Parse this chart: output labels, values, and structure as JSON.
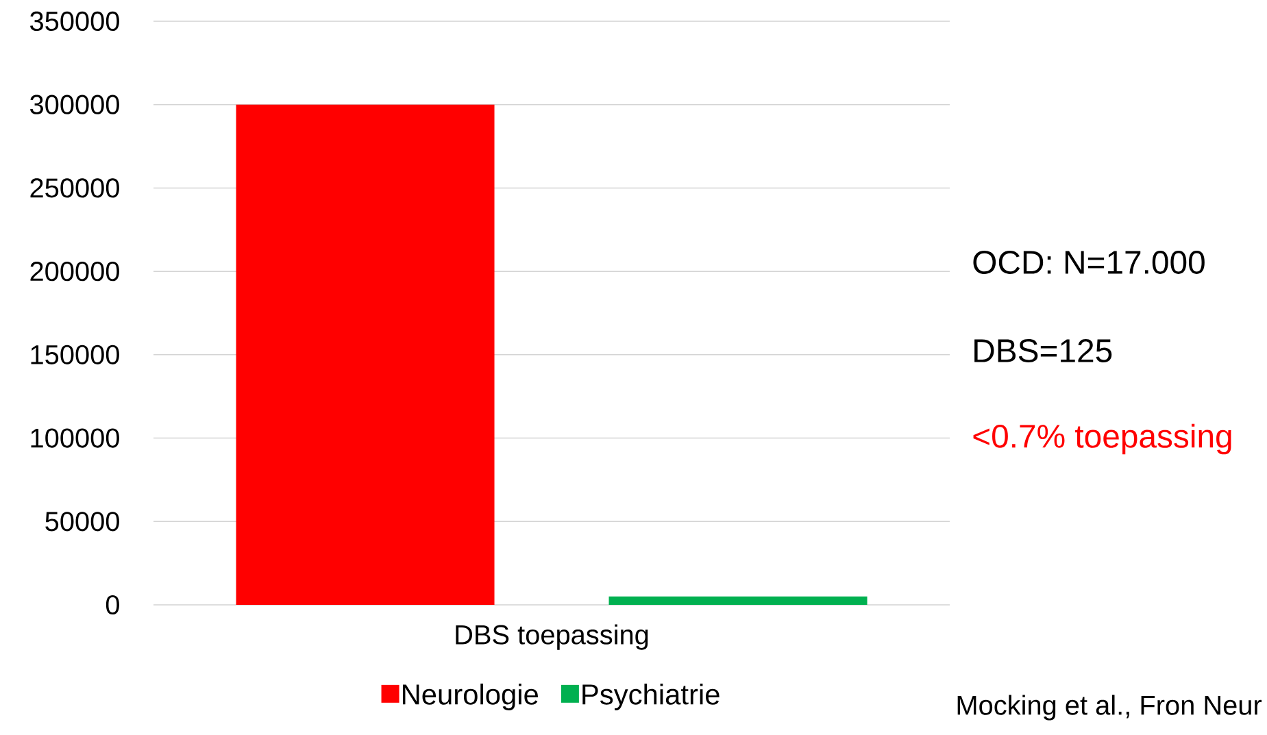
{
  "chart_data": {
    "type": "bar",
    "categories": [
      "DBS toepassing"
    ],
    "series": [
      {
        "name": "Neurologie",
        "color": "#ff0000",
        "values": [
          300000
        ]
      },
      {
        "name": "Psychiatrie",
        "color": "#00b050",
        "values": [
          5000
        ]
      }
    ],
    "ylim": [
      0,
      350000
    ],
    "yticks": [
      0,
      50000,
      100000,
      150000,
      200000,
      250000,
      300000,
      350000
    ],
    "grid": "y",
    "legend": "bottom",
    "annotations": [
      "OCD: N=17.000",
      "DBS=125",
      "<0.7% toepassing",
      "Mocking et al., Fron Neur"
    ]
  }
}
